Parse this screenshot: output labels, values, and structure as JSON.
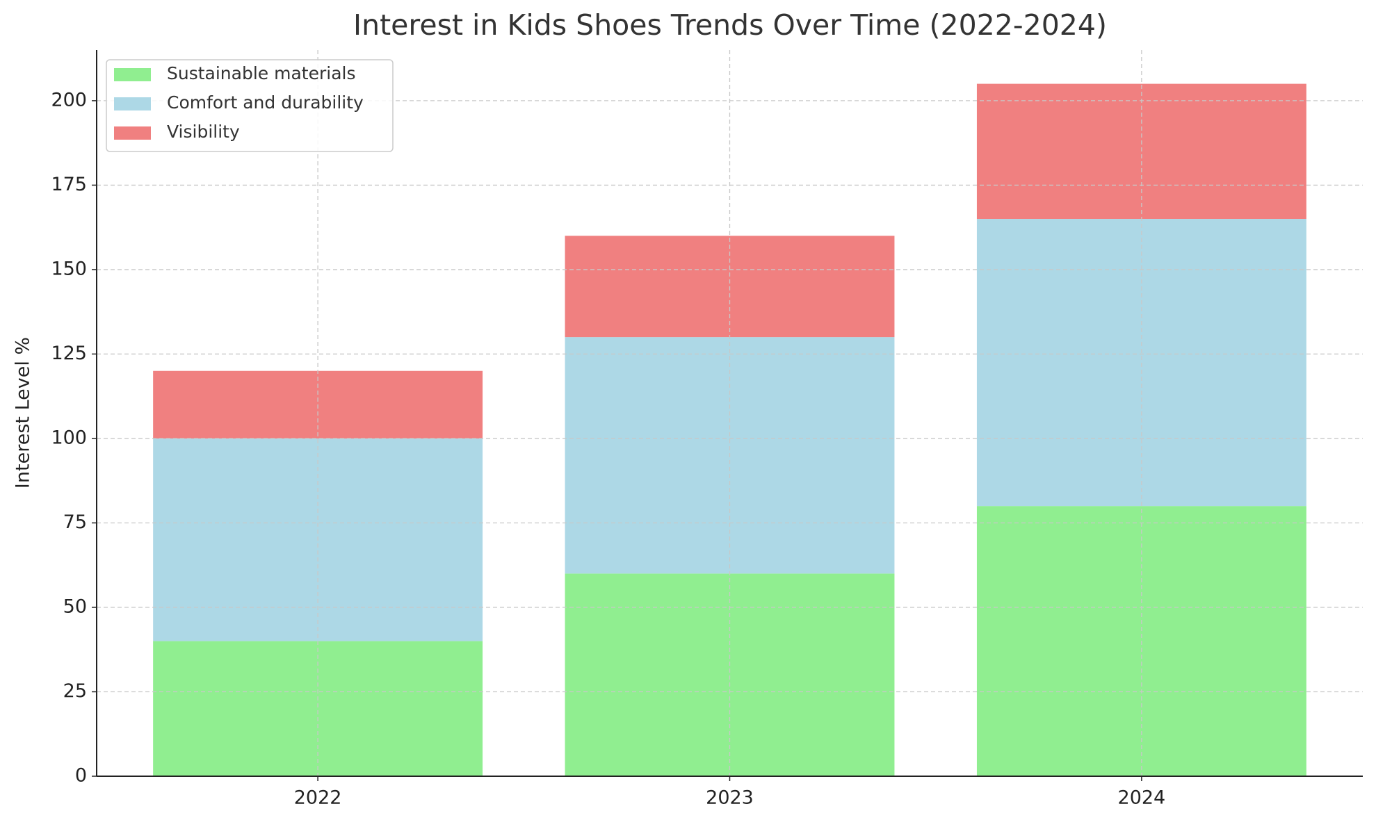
{
  "chart_data": {
    "type": "stacked_bar",
    "title": "Interest in Kids Shoes Trends Over Time (2022-2024)",
    "y_label": "Interest Level %",
    "categories": [
      "2022",
      "2023",
      "2024"
    ],
    "series": [
      {
        "name": "Sustainable materials",
        "color": "#90ee90",
        "values": [
          40,
          60,
          80
        ]
      },
      {
        "name": "Comfort and durability",
        "color": "#add8e6",
        "values": [
          60,
          70,
          85
        ]
      },
      {
        "name": "Visibility",
        "color": "#f08080",
        "values": [
          20,
          30,
          40
        ]
      }
    ],
    "ylim": [
      0,
      215
    ],
    "yticks": [
      0,
      25,
      50,
      75,
      100,
      125,
      150,
      175,
      200
    ],
    "grid": true,
    "legend": "upper-left"
  }
}
